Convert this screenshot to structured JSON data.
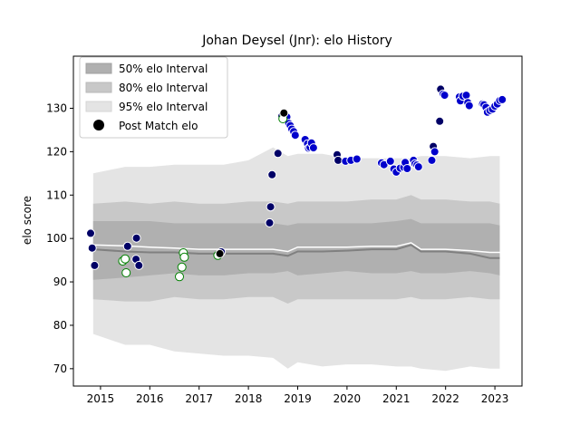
{
  "chart_data": {
    "type": "scatter",
    "title": "Johan Deysel (Jnr): elo History",
    "xlabel": "",
    "ylabel": "elo score",
    "xlim": [
      2014.45,
      2023.55
    ],
    "ylim": [
      66,
      142
    ],
    "x_ticks": [
      2015,
      2016,
      2017,
      2018,
      2019,
      2020,
      2021,
      2022,
      2023
    ],
    "y_ticks": [
      70,
      80,
      90,
      100,
      110,
      120,
      130
    ],
    "legend": {
      "placement": "top-left",
      "entries": [
        "50% elo Interval",
        "80% elo Interval",
        "95% elo Interval",
        "Post Match elo"
      ]
    },
    "colors": {
      "band50": "#b0b0b0",
      "band80": "#c8c8c8",
      "band95": "#e4e4e4",
      "median_line": "#808080",
      "mean_line": "#ffffff",
      "point_win_fill": "#0000cc",
      "point_navy_fill": "#000066",
      "point_draw_fill": "#ffffff",
      "point_draw_edge": "#008000",
      "point_black_fill": "#000000",
      "point_edge": "#ffffff"
    },
    "bands": {
      "x": [
        2014.85,
        2015.5,
        2016.0,
        2016.5,
        2017.0,
        2017.5,
        2018.0,
        2018.5,
        2018.8,
        2019.0,
        2019.5,
        2020.0,
        2020.5,
        2021.0,
        2021.3,
        2021.5,
        2022.0,
        2022.5,
        2022.9,
        2023.1
      ],
      "p2_5": [
        78.0,
        75.5,
        75.5,
        74.0,
        73.5,
        73.0,
        73.0,
        72.5,
        70.0,
        71.5,
        70.5,
        71.0,
        71.0,
        70.5,
        70.5,
        70.0,
        69.5,
        70.5,
        70.0,
        70.0
      ],
      "p10": [
        86.0,
        85.5,
        85.5,
        86.5,
        86.0,
        86.0,
        86.5,
        86.5,
        85.0,
        86.0,
        86.0,
        86.0,
        86.0,
        86.0,
        86.5,
        86.0,
        86.0,
        86.5,
        86.0,
        86.0
      ],
      "p25": [
        90.5,
        91.0,
        91.5,
        92.0,
        91.5,
        91.5,
        92.0,
        92.0,
        92.5,
        91.5,
        92.0,
        92.5,
        92.0,
        92.0,
        92.5,
        92.0,
        92.0,
        92.5,
        92.0,
        91.5
      ],
      "p50": [
        97.5,
        97.0,
        96.8,
        96.8,
        96.5,
        96.5,
        96.5,
        96.5,
        96.0,
        97.0,
        97.0,
        97.2,
        97.5,
        97.5,
        98.5,
        97.0,
        97.0,
        96.5,
        95.5,
        95.5
      ],
      "mean": [
        98.5,
        98.3,
        98.0,
        97.8,
        97.5,
        97.5,
        97.5,
        97.5,
        97.0,
        98.0,
        98.0,
        98.0,
        98.2,
        98.2,
        99.0,
        97.5,
        97.5,
        97.2,
        96.8,
        96.8
      ],
      "p75": [
        104.0,
        104.0,
        104.0,
        103.5,
        103.5,
        103.5,
        103.5,
        103.5,
        103.0,
        103.5,
        103.5,
        103.5,
        103.5,
        104.0,
        104.5,
        103.5,
        103.5,
        103.5,
        103.5,
        103.0
      ],
      "p90": [
        108.0,
        108.5,
        108.0,
        108.5,
        108.0,
        108.0,
        108.5,
        108.5,
        108.0,
        108.5,
        108.5,
        108.5,
        109.0,
        109.0,
        110.0,
        109.0,
        109.0,
        108.5,
        108.5,
        108.0
      ],
      "p97_5": [
        115.0,
        116.5,
        116.5,
        117.0,
        117.0,
        117.0,
        118.0,
        121.0,
        119.0,
        119.5,
        119.5,
        118.5,
        118.5,
        118.5,
        118.5,
        119.0,
        119.0,
        118.5,
        119.0,
        119.0
      ]
    },
    "series": [
      {
        "category": "navy",
        "points": [
          [
            2014.8,
            101.2
          ],
          [
            2014.83,
            97.8
          ],
          [
            2014.88,
            93.8
          ],
          [
            2015.55,
            98.2
          ],
          [
            2015.72,
            95.2
          ],
          [
            2015.73,
            100.1
          ],
          [
            2015.78,
            93.8
          ],
          [
            2017.45,
            96.9
          ],
          [
            2018.43,
            103.6
          ],
          [
            2018.45,
            107.3
          ],
          [
            2018.48,
            114.7
          ],
          [
            2018.6,
            119.6
          ],
          [
            2018.68,
            128.2
          ],
          [
            2019.8,
            119.3
          ],
          [
            2019.82,
            118.0
          ],
          [
            2021.75,
            121.2
          ],
          [
            2021.88,
            127.0
          ],
          [
            2021.9,
            134.4
          ]
        ]
      },
      {
        "category": "blue",
        "points": [
          [
            2018.72,
            128.5
          ],
          [
            2018.78,
            128.0
          ],
          [
            2018.82,
            126.5
          ],
          [
            2018.85,
            126.0
          ],
          [
            2018.88,
            125.2
          ],
          [
            2018.92,
            124.6
          ],
          [
            2018.95,
            123.8
          ],
          [
            2019.15,
            122.8
          ],
          [
            2019.2,
            121.8
          ],
          [
            2019.22,
            120.8
          ],
          [
            2019.25,
            121.0
          ],
          [
            2019.28,
            122.0
          ],
          [
            2019.32,
            120.9
          ],
          [
            2019.97,
            117.8
          ],
          [
            2020.08,
            118.0
          ],
          [
            2020.2,
            118.3
          ],
          [
            2020.7,
            117.4
          ],
          [
            2020.75,
            117.0
          ],
          [
            2020.88,
            117.8
          ],
          [
            2020.95,
            116.0
          ],
          [
            2021.0,
            115.3
          ],
          [
            2021.08,
            116.2
          ],
          [
            2021.15,
            116.4
          ],
          [
            2021.18,
            117.5
          ],
          [
            2021.22,
            116.1
          ],
          [
            2021.35,
            118.0
          ],
          [
            2021.38,
            117.2
          ],
          [
            2021.42,
            116.9
          ],
          [
            2021.45,
            116.5
          ],
          [
            2021.72,
            118.0
          ],
          [
            2021.78,
            120.0
          ],
          [
            2021.95,
            133.3
          ],
          [
            2021.98,
            133.0
          ],
          [
            2022.28,
            132.6
          ],
          [
            2022.3,
            131.7
          ],
          [
            2022.35,
            132.8
          ],
          [
            2022.42,
            133.0
          ],
          [
            2022.45,
            131.3
          ],
          [
            2022.48,
            130.6
          ],
          [
            2022.75,
            131.0
          ],
          [
            2022.78,
            130.8
          ],
          [
            2022.82,
            130.2
          ],
          [
            2022.85,
            129.1
          ],
          [
            2022.9,
            129.5
          ],
          [
            2022.95,
            129.8
          ],
          [
            2023.0,
            130.5
          ],
          [
            2023.05,
            131.0
          ],
          [
            2023.1,
            131.8
          ],
          [
            2023.15,
            132.0
          ]
        ]
      },
      {
        "category": "draw",
        "points": [
          [
            2015.45,
            94.8
          ],
          [
            2015.5,
            95.3
          ],
          [
            2015.52,
            92.1
          ],
          [
            2016.6,
            91.2
          ],
          [
            2016.65,
            93.4
          ],
          [
            2016.68,
            96.7
          ],
          [
            2016.7,
            95.7
          ],
          [
            2017.38,
            96.1
          ],
          [
            2018.7,
            127.6
          ]
        ]
      },
      {
        "category": "black",
        "points": [
          [
            2017.42,
            96.5
          ],
          [
            2018.72,
            128.9
          ]
        ]
      }
    ]
  }
}
